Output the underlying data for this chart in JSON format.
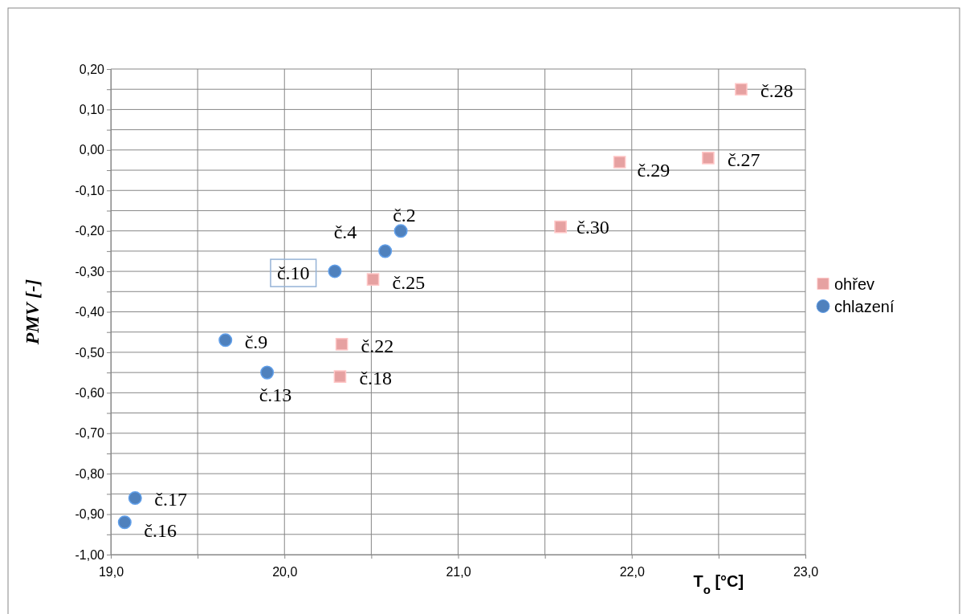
{
  "chart_data": {
    "type": "scatter",
    "xlabel": "T$_{o}$ [°C]",
    "ylabel": "PMV [-]",
    "xlim": [
      19,
      23
    ],
    "ylim": [
      -1,
      0.2
    ],
    "xticks": [
      {
        "value": 19,
        "label": "19,0"
      },
      {
        "value": 19.5,
        "label": null
      },
      {
        "value": 20,
        "label": "20,0"
      },
      {
        "value": 20.5,
        "label": null
      },
      {
        "value": 21,
        "label": "21,0"
      },
      {
        "value": 21.5,
        "label": null
      },
      {
        "value": 22,
        "label": "22,0"
      },
      {
        "value": 22.5,
        "label": null
      },
      {
        "value": 23,
        "label": "23,0"
      }
    ],
    "yticks": [
      {
        "value": -1,
        "label": "-1,00"
      },
      {
        "value": -0.95,
        "label": null
      },
      {
        "value": -0.9,
        "label": "-0,90"
      },
      {
        "value": -0.85,
        "label": null
      },
      {
        "value": -0.8,
        "label": "-0,80"
      },
      {
        "value": -0.75,
        "label": null
      },
      {
        "value": -0.7,
        "label": "-0,70"
      },
      {
        "value": -0.65,
        "label": null
      },
      {
        "value": -0.6,
        "label": "-0,60"
      },
      {
        "value": -0.55,
        "label": null
      },
      {
        "value": -0.5,
        "label": "-0,50"
      },
      {
        "value": -0.45,
        "label": null
      },
      {
        "value": -0.4,
        "label": "-0,40"
      },
      {
        "value": -0.35,
        "label": null
      },
      {
        "value": -0.3,
        "label": "-0,30"
      },
      {
        "value": -0.25,
        "label": null
      },
      {
        "value": -0.2,
        "label": "-0,20"
      },
      {
        "value": -0.15,
        "label": null
      },
      {
        "value": -0.1,
        "label": "-0,10"
      },
      {
        "value": -0.05,
        "label": null
      },
      {
        "value": 0,
        "label": "0,00"
      },
      {
        "value": 0.05,
        "label": null
      },
      {
        "value": 0.1,
        "label": "0,10"
      },
      {
        "value": 0.15,
        "label": null
      },
      {
        "value": 0.2,
        "label": "0,20"
      }
    ],
    "grid": true,
    "legend": "right",
    "series": [
      {
        "name": "ohřev",
        "color": "#e6a1a1",
        "marker": "square",
        "x": [
          22.63,
          22.44,
          21.93,
          21.59,
          20.51,
          20.33,
          20.32
        ],
        "values": [
          0.15,
          -0.02,
          -0.03,
          -0.19,
          -0.32,
          -0.48,
          -0.56
        ]
      },
      {
        "name": "chlazení",
        "color": "#4f81bd",
        "marker": "circle",
        "x": [
          20.67,
          20.58,
          20.29,
          19.66,
          19.9,
          19.14,
          19.08
        ],
        "values": [
          -0.2,
          -0.25,
          -0.3,
          -0.47,
          -0.55,
          -0.86,
          -0.92
        ]
      }
    ],
    "annotations": [
      {
        "text": "č.28",
        "x": 22.63,
        "y": 0.15
      },
      {
        "text": "č.27",
        "x": 22.44,
        "y": -0.02
      },
      {
        "text": "č.29",
        "x": 21.93,
        "y": -0.03
      },
      {
        "text": "č.30",
        "x": 21.59,
        "y": -0.19
      },
      {
        "text": "č.25",
        "x": 20.51,
        "y": -0.32
      },
      {
        "text": "č.22",
        "x": 20.33,
        "y": -0.48
      },
      {
        "text": "č.18",
        "x": 20.32,
        "y": -0.56
      },
      {
        "text": "č.2",
        "x": 20.67,
        "y": -0.2
      },
      {
        "text": "č.4",
        "x": 20.58,
        "y": -0.25
      },
      {
        "text": "č.10",
        "x": 20.29,
        "y": -0.3
      },
      {
        "text": "č.9",
        "x": 19.66,
        "y": -0.47
      },
      {
        "text": "č.13",
        "x": 19.9,
        "y": -0.55
      },
      {
        "text": "č.17",
        "x": 19.14,
        "y": -0.86
      },
      {
        "text": "č.16",
        "x": 19.08,
        "y": -0.92
      }
    ]
  }
}
